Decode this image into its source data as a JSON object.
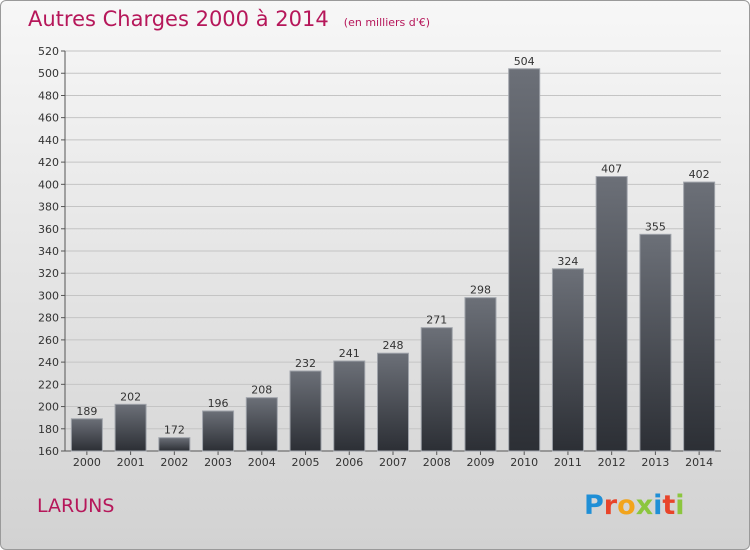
{
  "header": {
    "title": "Autres Charges 2000 à 2014",
    "subtitle": "(en milliers d'€)"
  },
  "footer": {
    "town": "LARUNS",
    "logo_text": "Proxiti"
  },
  "colors": {
    "title": "#b6175a",
    "bar_top": "#6c7078",
    "bar_bottom": "#2c2f35",
    "logo_letters": [
      "#1f8fd6",
      "#e8442a",
      "#f2a41c",
      "#8cc63e",
      "#1f8fd6",
      "#e8442a",
      "#8cc63e"
    ]
  },
  "chart_data": {
    "type": "bar",
    "title": "Autres Charges 2000 à 2014",
    "subtitle": "(en milliers d'€)",
    "categories": [
      "2000",
      "2001",
      "2002",
      "2003",
      "2004",
      "2005",
      "2006",
      "2007",
      "2008",
      "2009",
      "2010",
      "2011",
      "2012",
      "2013",
      "2014"
    ],
    "values": [
      189,
      202,
      172,
      196,
      208,
      232,
      241,
      248,
      271,
      298,
      504,
      324,
      407,
      355,
      402
    ],
    "ylim": [
      160,
      520
    ],
    "yticks": [
      160,
      180,
      200,
      220,
      240,
      260,
      280,
      300,
      320,
      340,
      360,
      380,
      400,
      420,
      440,
      460,
      480,
      500,
      520
    ],
    "grid": true,
    "data_labels": true
  }
}
